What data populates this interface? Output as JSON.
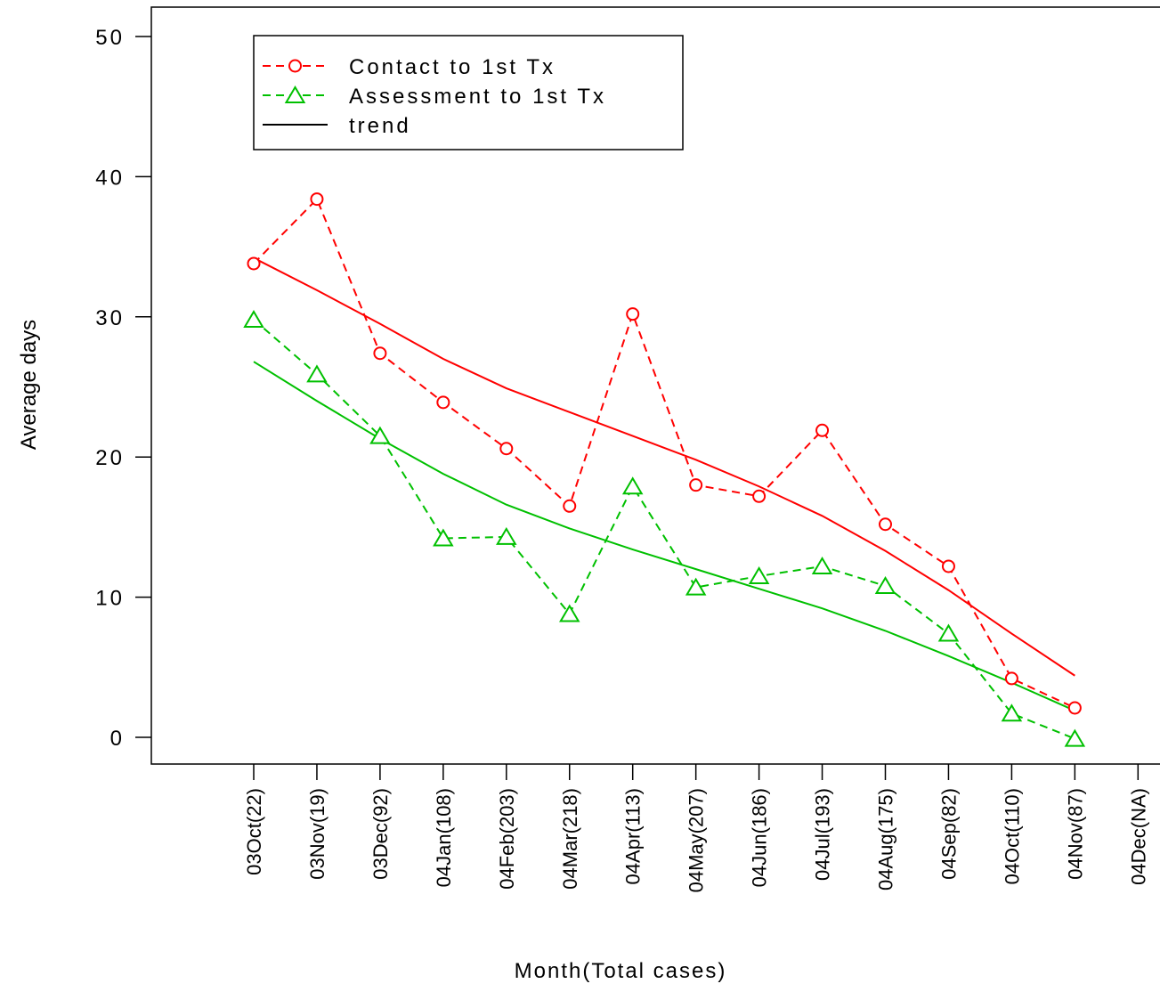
{
  "chart_data": {
    "type": "line",
    "xlabel": "Month(Total cases)",
    "ylabel": "Average days",
    "ylim": [
      0,
      50
    ],
    "yticks": [
      0,
      10,
      20,
      30,
      40,
      50
    ],
    "categories": [
      "03Oct(22)",
      "03Nov(19)",
      "03Dec(92)",
      "04Jan(108)",
      "04Feb(203)",
      "04Mar(218)",
      "04Apr(113)",
      "04May(207)",
      "04Jun(186)",
      "04Jul(193)",
      "04Aug(175)",
      "04Sep(82)",
      "04Oct(110)",
      "04Nov(87)",
      "04Dec(NA)"
    ],
    "series": [
      {
        "name": "Contact to 1st Tx",
        "color": "#ff0000",
        "style": "dashed",
        "marker": "circle",
        "values": [
          33.8,
          38.4,
          27.4,
          23.9,
          20.6,
          16.5,
          30.2,
          18.0,
          17.2,
          21.9,
          15.2,
          12.2,
          4.2,
          2.1,
          null
        ]
      },
      {
        "name": "Assessment to 1st Tx",
        "color": "#00c000",
        "style": "dashed",
        "marker": "triangle",
        "values": [
          29.8,
          25.9,
          21.5,
          14.2,
          14.3,
          8.8,
          17.9,
          10.7,
          11.5,
          12.2,
          10.8,
          7.4,
          1.7,
          -0.1,
          null
        ]
      }
    ],
    "trends": [
      {
        "series": "Contact to 1st Tx",
        "color": "#ff0000",
        "values": [
          34.2,
          31.9,
          29.5,
          27.0,
          24.9,
          23.2,
          21.5,
          19.8,
          17.9,
          15.8,
          13.3,
          10.5,
          7.4,
          4.4,
          null
        ]
      },
      {
        "series": "Assessment to 1st Tx",
        "color": "#00c000",
        "values": [
          26.8,
          24.0,
          21.3,
          18.8,
          16.6,
          14.9,
          13.4,
          12.0,
          10.6,
          9.2,
          7.6,
          5.8,
          3.9,
          1.9,
          null
        ]
      }
    ],
    "legend": {
      "position": "top-left",
      "entries": [
        {
          "label": "Contact to 1st Tx",
          "color": "#ff0000",
          "line": "dashed",
          "marker": "circle"
        },
        {
          "label": "Assessment to 1st Tx",
          "color": "#00c000",
          "line": "dashed",
          "marker": "triangle"
        },
        {
          "label": "trend",
          "color": "#000000",
          "line": "solid",
          "marker": "none"
        }
      ]
    },
    "grid": false
  }
}
